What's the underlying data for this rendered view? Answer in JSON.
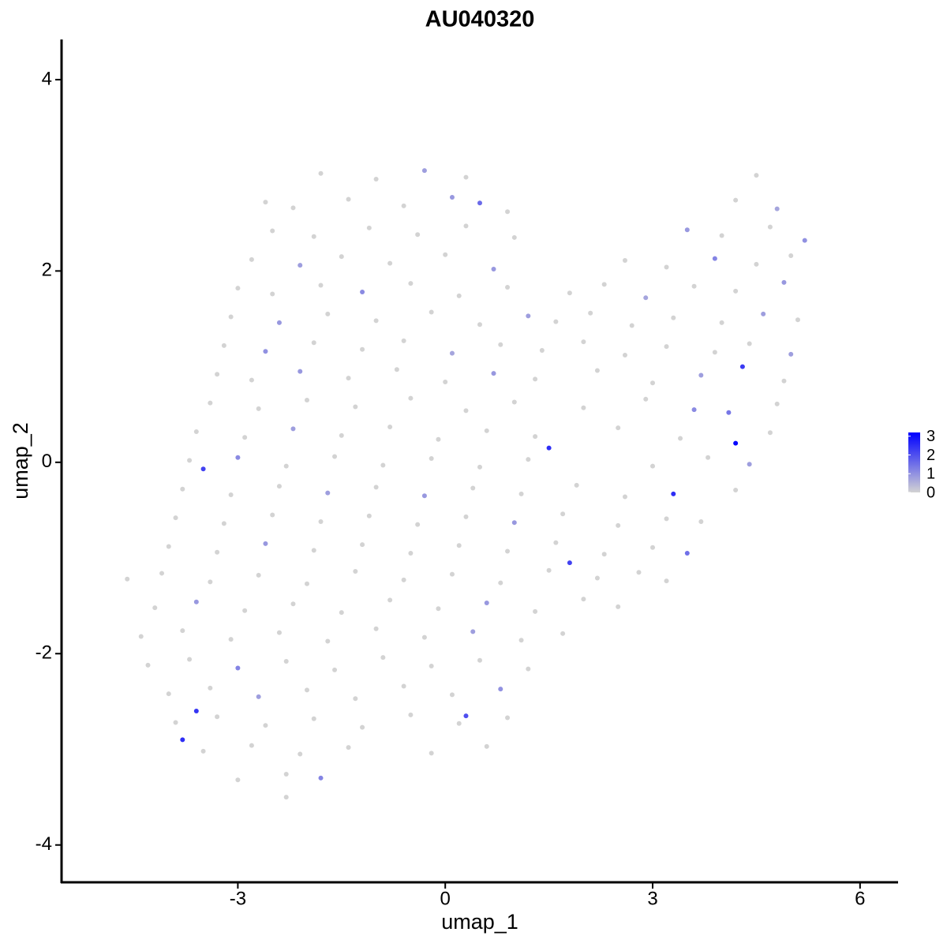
{
  "chart_data": {
    "type": "scatter",
    "title": "AU040320",
    "x_label": "umap_1",
    "y_label": "umap_2",
    "xlim": [
      -5.55,
      6.55
    ],
    "ylim": [
      -4.39,
      4.42
    ],
    "xticks": [
      -3,
      0,
      3,
      6
    ],
    "yticks": [
      -4,
      -2,
      0,
      2,
      4
    ],
    "color_low": "#d3d3d3",
    "color_high": "#0000ff",
    "color_lim": [
      0,
      3.2
    ],
    "color_ticks": [
      0,
      1,
      2,
      3
    ],
    "points": [
      [
        -1.8,
        3.02,
        0
      ],
      [
        -1.0,
        2.96,
        0
      ],
      [
        -0.3,
        3.05,
        0.8
      ],
      [
        0.3,
        2.98,
        0
      ],
      [
        4.5,
        3.0,
        0
      ],
      [
        -2.6,
        2.72,
        0
      ],
      [
        -2.2,
        2.66,
        0
      ],
      [
        -1.4,
        2.75,
        0
      ],
      [
        -0.6,
        2.68,
        0
      ],
      [
        0.1,
        2.77,
        0.9
      ],
      [
        0.5,
        2.71,
        1.6
      ],
      [
        0.9,
        2.62,
        0
      ],
      [
        4.2,
        2.74,
        0
      ],
      [
        4.8,
        2.65,
        0.7
      ],
      [
        -2.5,
        2.42,
        0
      ],
      [
        -1.9,
        2.36,
        0
      ],
      [
        -1.1,
        2.45,
        0
      ],
      [
        -0.4,
        2.38,
        0
      ],
      [
        0.3,
        2.47,
        0
      ],
      [
        1.0,
        2.35,
        0
      ],
      [
        3.5,
        2.43,
        0.9
      ],
      [
        4.0,
        2.37,
        0
      ],
      [
        4.7,
        2.46,
        0
      ],
      [
        5.2,
        2.32,
        1.0
      ],
      [
        -2.8,
        2.12,
        0
      ],
      [
        -2.1,
        2.06,
        0.8
      ],
      [
        -1.5,
        2.15,
        0
      ],
      [
        -0.8,
        2.08,
        0
      ],
      [
        0.0,
        2.17,
        0
      ],
      [
        0.7,
        2.02,
        0.9
      ],
      [
        2.6,
        2.11,
        0
      ],
      [
        3.2,
        2.04,
        0
      ],
      [
        3.9,
        2.13,
        1.2
      ],
      [
        4.5,
        2.07,
        0
      ],
      [
        5.0,
        2.16,
        0
      ],
      [
        -3.0,
        1.82,
        0
      ],
      [
        -2.5,
        1.76,
        0
      ],
      [
        -1.8,
        1.85,
        0
      ],
      [
        -1.2,
        1.78,
        1.1
      ],
      [
        -0.5,
        1.87,
        0
      ],
      [
        0.2,
        1.74,
        0
      ],
      [
        0.9,
        1.83,
        0
      ],
      [
        1.8,
        1.77,
        0
      ],
      [
        2.3,
        1.86,
        0
      ],
      [
        2.9,
        1.72,
        0.7
      ],
      [
        3.6,
        1.84,
        0
      ],
      [
        4.2,
        1.79,
        0
      ],
      [
        4.9,
        1.88,
        0.9
      ],
      [
        -3.1,
        1.52,
        0
      ],
      [
        -2.4,
        1.46,
        0.9
      ],
      [
        -1.7,
        1.55,
        0
      ],
      [
        -1.0,
        1.48,
        0
      ],
      [
        -0.2,
        1.57,
        0
      ],
      [
        0.5,
        1.44,
        0
      ],
      [
        1.2,
        1.53,
        0.8
      ],
      [
        1.6,
        1.47,
        0
      ],
      [
        2.1,
        1.56,
        0
      ],
      [
        2.7,
        1.43,
        0
      ],
      [
        3.3,
        1.51,
        0
      ],
      [
        4.0,
        1.46,
        0
      ],
      [
        4.6,
        1.55,
        0.8
      ],
      [
        5.1,
        1.49,
        0
      ],
      [
        -3.2,
        1.22,
        0
      ],
      [
        -2.6,
        1.16,
        1.0
      ],
      [
        -1.9,
        1.25,
        0
      ],
      [
        -1.2,
        1.18,
        0
      ],
      [
        -0.6,
        1.27,
        0
      ],
      [
        0.1,
        1.14,
        0.7
      ],
      [
        0.8,
        1.23,
        0
      ],
      [
        1.4,
        1.17,
        0
      ],
      [
        2.0,
        1.26,
        0
      ],
      [
        2.6,
        1.12,
        0
      ],
      [
        3.2,
        1.21,
        0
      ],
      [
        3.9,
        1.15,
        0
      ],
      [
        4.4,
        1.24,
        0
      ],
      [
        5.0,
        1.13,
        0.8
      ],
      [
        -3.3,
        0.92,
        0
      ],
      [
        -2.8,
        0.86,
        0
      ],
      [
        -2.1,
        0.95,
        0.9
      ],
      [
        -1.4,
        0.88,
        0
      ],
      [
        -0.7,
        0.97,
        0
      ],
      [
        0.0,
        0.84,
        0
      ],
      [
        0.7,
        0.93,
        0.9
      ],
      [
        1.3,
        0.87,
        0
      ],
      [
        2.2,
        0.96,
        0
      ],
      [
        3.0,
        0.83,
        0
      ],
      [
        3.7,
        0.91,
        0.8
      ],
      [
        4.3,
        1.0,
        2.3
      ],
      [
        4.9,
        0.85,
        0
      ],
      [
        -3.4,
        0.62,
        0
      ],
      [
        -2.7,
        0.56,
        0
      ],
      [
        -2.0,
        0.65,
        0
      ],
      [
        -1.3,
        0.58,
        0
      ],
      [
        -0.5,
        0.67,
        0
      ],
      [
        0.3,
        0.54,
        0
      ],
      [
        1.0,
        0.63,
        0
      ],
      [
        2.0,
        0.57,
        0
      ],
      [
        2.9,
        0.66,
        0
      ],
      [
        3.6,
        0.55,
        1.1
      ],
      [
        4.1,
        0.52,
        1.4
      ],
      [
        4.8,
        0.61,
        0
      ],
      [
        -3.6,
        0.32,
        0
      ],
      [
        -2.9,
        0.26,
        0
      ],
      [
        -2.2,
        0.35,
        0.8
      ],
      [
        -1.5,
        0.28,
        0
      ],
      [
        -0.8,
        0.37,
        0
      ],
      [
        -0.1,
        0.24,
        0
      ],
      [
        0.6,
        0.33,
        0
      ],
      [
        1.3,
        0.27,
        0
      ],
      [
        2.5,
        0.36,
        0
      ],
      [
        3.4,
        0.25,
        0
      ],
      [
        4.2,
        0.2,
        3.1
      ],
      [
        4.7,
        0.31,
        0
      ],
      [
        -3.7,
        0.02,
        0
      ],
      [
        -3.5,
        -0.07,
        2.2
      ],
      [
        -3.0,
        0.05,
        1.1
      ],
      [
        -2.3,
        -0.04,
        0
      ],
      [
        -1.6,
        0.06,
        0
      ],
      [
        -0.9,
        -0.03,
        0
      ],
      [
        -0.2,
        0.04,
        0
      ],
      [
        0.5,
        -0.05,
        0
      ],
      [
        1.2,
        0.03,
        0
      ],
      [
        1.5,
        0.15,
        2.5
      ],
      [
        3.0,
        -0.04,
        0
      ],
      [
        3.8,
        0.05,
        0
      ],
      [
        4.4,
        -0.02,
        0.8
      ],
      [
        -3.8,
        -0.28,
        0
      ],
      [
        -3.1,
        -0.34,
        0
      ],
      [
        -2.4,
        -0.25,
        0
      ],
      [
        -1.7,
        -0.32,
        0.8
      ],
      [
        -1.0,
        -0.26,
        0
      ],
      [
        -0.3,
        -0.35,
        0.9
      ],
      [
        0.4,
        -0.27,
        0
      ],
      [
        1.1,
        -0.33,
        0
      ],
      [
        1.9,
        -0.24,
        0
      ],
      [
        2.6,
        -0.36,
        0
      ],
      [
        3.3,
        -0.33,
        2.5
      ],
      [
        4.2,
        -0.29,
        0
      ],
      [
        -3.9,
        -0.58,
        0
      ],
      [
        -3.2,
        -0.64,
        0
      ],
      [
        -2.5,
        -0.55,
        0
      ],
      [
        -1.8,
        -0.62,
        0
      ],
      [
        -1.1,
        -0.56,
        0
      ],
      [
        -0.4,
        -0.65,
        0
      ],
      [
        0.3,
        -0.57,
        0
      ],
      [
        1.0,
        -0.63,
        0.9
      ],
      [
        1.7,
        -0.54,
        0
      ],
      [
        2.5,
        -0.66,
        0
      ],
      [
        3.2,
        -0.59,
        0
      ],
      [
        3.7,
        -0.62,
        0
      ],
      [
        -4.0,
        -0.88,
        0
      ],
      [
        -3.3,
        -0.94,
        0
      ],
      [
        -2.6,
        -0.85,
        0.9
      ],
      [
        -1.9,
        -0.92,
        0
      ],
      [
        -1.2,
        -0.86,
        0
      ],
      [
        -0.5,
        -0.95,
        0
      ],
      [
        0.2,
        -0.87,
        0
      ],
      [
        0.9,
        -0.93,
        0
      ],
      [
        1.6,
        -0.84,
        0
      ],
      [
        2.3,
        -0.96,
        0
      ],
      [
        3.0,
        -0.89,
        0
      ],
      [
        3.5,
        -0.95,
        1.5
      ],
      [
        -4.6,
        -1.22,
        0
      ],
      [
        -4.1,
        -1.16,
        0
      ],
      [
        -3.4,
        -1.25,
        0
      ],
      [
        -2.7,
        -1.18,
        0
      ],
      [
        -2.0,
        -1.27,
        0
      ],
      [
        -1.3,
        -1.14,
        0
      ],
      [
        -0.6,
        -1.23,
        0
      ],
      [
        0.1,
        -1.17,
        0
      ],
      [
        0.8,
        -1.26,
        0
      ],
      [
        1.5,
        -1.13,
        0
      ],
      [
        1.8,
        -1.05,
        2.2
      ],
      [
        2.2,
        -1.21,
        0
      ],
      [
        2.8,
        -1.15,
        0
      ],
      [
        3.2,
        -1.24,
        0
      ],
      [
        -4.2,
        -1.52,
        0
      ],
      [
        -3.6,
        -1.46,
        0.9
      ],
      [
        -2.9,
        -1.55,
        0
      ],
      [
        -2.2,
        -1.48,
        0
      ],
      [
        -1.5,
        -1.57,
        0
      ],
      [
        -0.8,
        -1.44,
        0
      ],
      [
        -0.1,
        -1.53,
        0
      ],
      [
        0.6,
        -1.47,
        0.9
      ],
      [
        1.3,
        -1.56,
        0
      ],
      [
        2.0,
        -1.43,
        0
      ],
      [
        2.5,
        -1.51,
        0
      ],
      [
        -4.4,
        -1.82,
        0
      ],
      [
        -3.8,
        -1.76,
        0
      ],
      [
        -3.1,
        -1.85,
        0
      ],
      [
        -2.4,
        -1.78,
        0
      ],
      [
        -1.7,
        -1.87,
        0
      ],
      [
        -1.0,
        -1.74,
        0
      ],
      [
        -0.3,
        -1.83,
        0
      ],
      [
        0.4,
        -1.77,
        0.8
      ],
      [
        1.1,
        -1.86,
        0
      ],
      [
        1.7,
        -1.79,
        0
      ],
      [
        -4.3,
        -2.12,
        0
      ],
      [
        -3.7,
        -2.06,
        0
      ],
      [
        -3.0,
        -2.15,
        1.2
      ],
      [
        -2.3,
        -2.08,
        0
      ],
      [
        -1.6,
        -2.17,
        0
      ],
      [
        -0.9,
        -2.04,
        0
      ],
      [
        -0.2,
        -2.13,
        0
      ],
      [
        0.5,
        -2.07,
        0
      ],
      [
        1.2,
        -2.16,
        0
      ],
      [
        -4.0,
        -2.42,
        0
      ],
      [
        -3.4,
        -2.36,
        0
      ],
      [
        -2.7,
        -2.45,
        0.8
      ],
      [
        -2.0,
        -2.38,
        0
      ],
      [
        -1.3,
        -2.47,
        0
      ],
      [
        -0.6,
        -2.34,
        0
      ],
      [
        0.1,
        -2.43,
        0
      ],
      [
        0.8,
        -2.37,
        1.0
      ],
      [
        -3.9,
        -2.72,
        0
      ],
      [
        -3.6,
        -2.6,
        2.4
      ],
      [
        -3.3,
        -2.66,
        0
      ],
      [
        -2.6,
        -2.75,
        0
      ],
      [
        -1.9,
        -2.68,
        0
      ],
      [
        -1.2,
        -2.77,
        0
      ],
      [
        -0.5,
        -2.64,
        0
      ],
      [
        0.2,
        -2.73,
        0
      ],
      [
        0.3,
        -2.65,
        2.0
      ],
      [
        0.9,
        -2.67,
        0
      ],
      [
        -3.8,
        -2.9,
        2.5
      ],
      [
        -3.5,
        -3.02,
        0
      ],
      [
        -2.8,
        -2.96,
        0
      ],
      [
        -2.1,
        -3.05,
        0
      ],
      [
        -1.4,
        -2.98,
        0
      ],
      [
        -0.2,
        -3.04,
        0
      ],
      [
        0.6,
        -2.97,
        0
      ],
      [
        -3.0,
        -3.32,
        0
      ],
      [
        -2.3,
        -3.26,
        0
      ],
      [
        -1.8,
        -3.3,
        1.2
      ],
      [
        -2.3,
        -3.5,
        0
      ]
    ]
  }
}
